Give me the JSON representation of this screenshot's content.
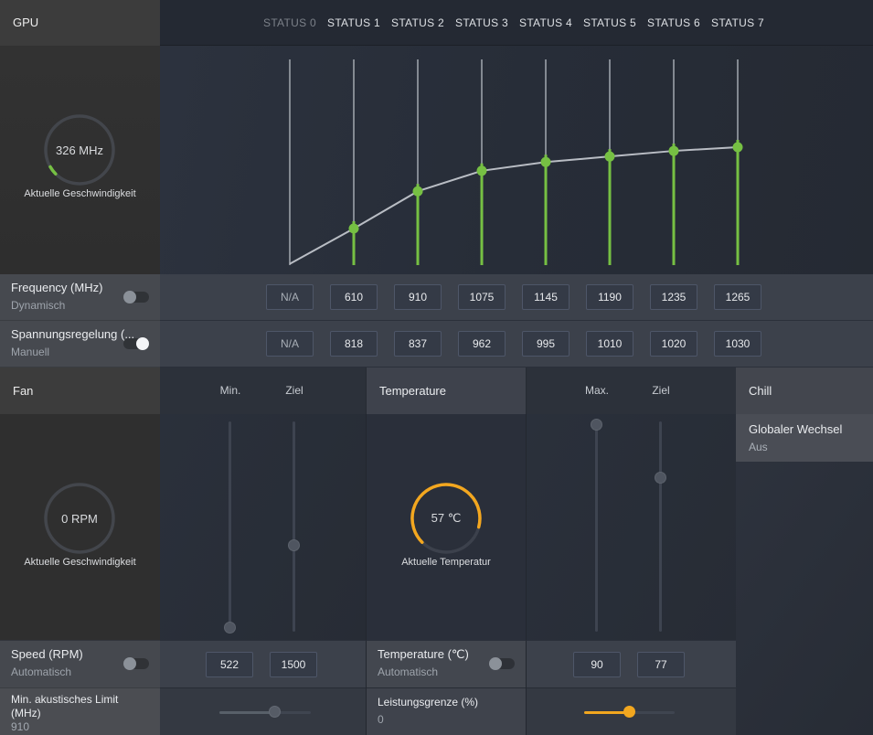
{
  "colors": {
    "green": "#76c043",
    "yellow": "#f3a71f",
    "panel_dark": "#262b34",
    "header_gray": "#3c3c3c"
  },
  "gpu": {
    "header": "GPU",
    "gauge_value": "326 MHz",
    "gauge_caption": "Aktuelle Geschwindigkeit"
  },
  "statuses": [
    "STATUS 0",
    "STATUS 1",
    "STATUS 2",
    "STATUS 3",
    "STATUS 4",
    "STATUS 5",
    "STATUS 6",
    "STATUS 7"
  ],
  "rows": {
    "frequency": {
      "label": "Frequency (MHz)",
      "mode": "Dynamisch",
      "values": [
        "N/A",
        "610",
        "910",
        "1075",
        "1145",
        "1190",
        "1235",
        "1265"
      ]
    },
    "voltage": {
      "label": "Spannungsregelung (...",
      "mode": "Manuell",
      "values": [
        "N/A",
        "818",
        "837",
        "962",
        "995",
        "1010",
        "1020",
        "1030"
      ]
    }
  },
  "fan": {
    "header": "Fan",
    "col_min": "Min.",
    "col_target": "Ziel",
    "gauge_value": "0 RPM",
    "gauge_caption": "Aktuelle Geschwindigkeit",
    "speed": {
      "label": "Speed (RPM)",
      "mode": "Automatisch",
      "min_value": "522",
      "target_value": "1500"
    },
    "acoustic": {
      "label": "Min. akustisches Limit (MHz)",
      "value": "910"
    }
  },
  "temperature": {
    "header": "Temperature",
    "gauge_value": "57 ℃",
    "gauge_caption": "Aktuelle Temperatur",
    "col_max": "Max.",
    "col_target": "Ziel",
    "temp": {
      "label": "Temperature (℃)",
      "mode": "Automatisch",
      "max_value": "90",
      "target_value": "77"
    },
    "power": {
      "label": "Leistungsgrenze (%)",
      "value": "0"
    }
  },
  "chill": {
    "header": "Chill",
    "item_label": "Globaler Wechsel",
    "item_value": "Aus"
  },
  "chart_data": {
    "type": "line",
    "title": "GPU frequency/voltage curve per status",
    "x_labels": [
      "STATUS 0",
      "STATUS 1",
      "STATUS 2",
      "STATUS 3",
      "STATUS 4",
      "STATUS 5",
      "STATUS 6",
      "STATUS 7"
    ],
    "series": [
      {
        "name": "Frequency (MHz)",
        "values": [
          null,
          610,
          910,
          1075,
          1145,
          1190,
          1235,
          1265
        ]
      },
      {
        "name": "Spannungsregelung (mV)",
        "values": [
          null,
          818,
          837,
          962,
          995,
          1010,
          1020,
          1030
        ]
      }
    ],
    "current_mhz": 326,
    "ylim": [
      300,
      1300
    ],
    "grid": false,
    "legend": "none"
  }
}
